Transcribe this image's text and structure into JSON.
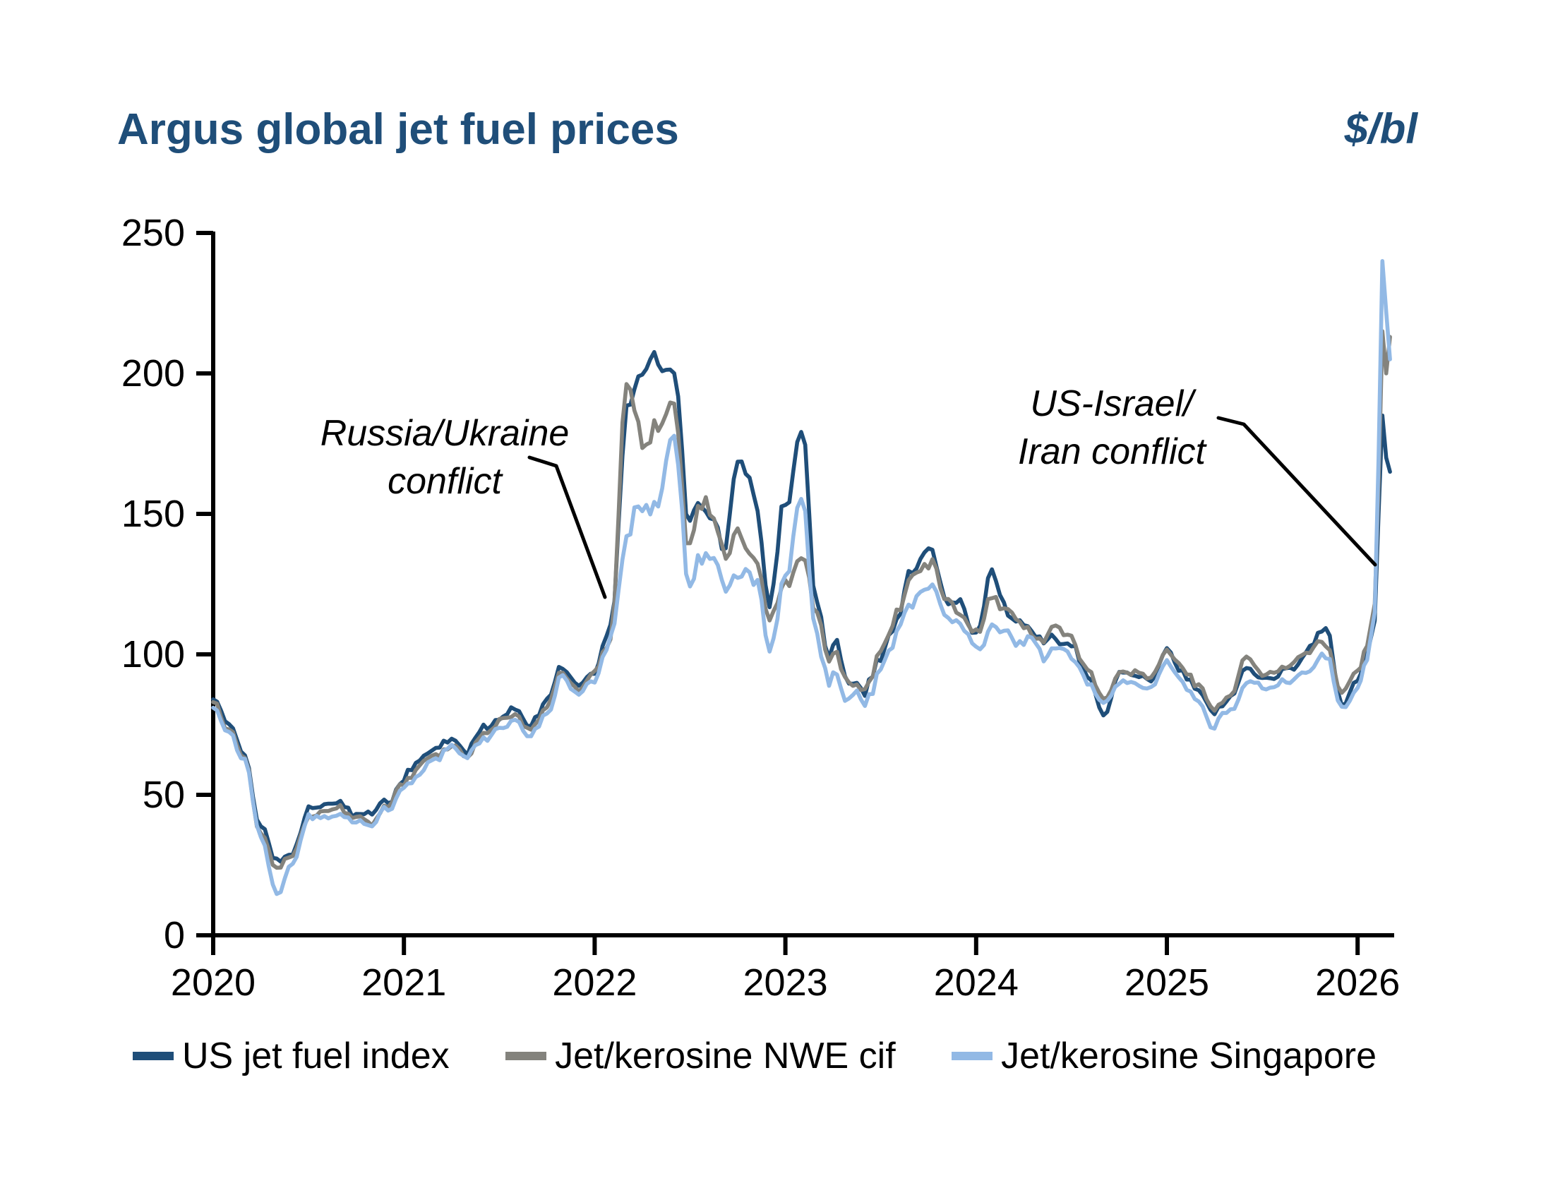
{
  "header": {
    "title": "Argus global jet fuel prices",
    "unit": "$/bl"
  },
  "annotations": {
    "russia_ukraine": {
      "lines": [
        "Russia/Ukraine",
        "conflict"
      ]
    },
    "us_israel_iran": {
      "lines": [
        "US-Israel/",
        "Iran conflict"
      ]
    }
  },
  "colors": {
    "title": "#1F4E79",
    "axis": "#000000",
    "us": "#1F4E79",
    "nwe": "#84837D",
    "singapore": "#92B9E5"
  },
  "chart_data": {
    "type": "line",
    "title": "Argus global jet fuel prices",
    "ylabel": "$/bl",
    "ylim": [
      0,
      250
    ],
    "yticks": [
      0,
      50,
      100,
      150,
      200,
      250
    ],
    "xticks": [
      2020,
      2021,
      2022,
      2023,
      2024,
      2025,
      2026
    ],
    "grid": false,
    "legend_position": "bottom",
    "x": [
      2020.0,
      2020.083,
      2020.167,
      2020.25,
      2020.333,
      2020.417,
      2020.5,
      2020.583,
      2020.667,
      2020.75,
      2020.833,
      2020.917,
      2021.0,
      2021.083,
      2021.167,
      2021.25,
      2021.333,
      2021.417,
      2021.5,
      2021.583,
      2021.667,
      2021.75,
      2021.833,
      2021.917,
      2022.0,
      2022.083,
      2022.167,
      2022.25,
      2022.333,
      2022.417,
      2022.5,
      2022.583,
      2022.667,
      2022.75,
      2022.833,
      2022.917,
      2023.0,
      2023.083,
      2023.167,
      2023.25,
      2023.333,
      2023.417,
      2023.5,
      2023.583,
      2023.667,
      2023.75,
      2023.833,
      2023.917,
      2024.0,
      2024.083,
      2024.167,
      2024.25,
      2024.333,
      2024.417,
      2024.5,
      2024.583,
      2024.667,
      2024.75,
      2024.833,
      2024.917,
      2025.0,
      2025.083,
      2025.167,
      2025.25,
      2025.333,
      2025.417,
      2025.5,
      2025.583,
      2025.667,
      2025.75,
      2025.833,
      2025.917,
      2026.0,
      2026.05,
      2026.09,
      2026.11,
      2026.13,
      2026.15,
      2026.17
    ],
    "series": [
      {
        "name": "US jet fuel index",
        "color": "#1F4E79",
        "values": [
          84,
          75,
          64,
          39,
          27,
          31,
          45,
          49,
          48,
          44,
          42,
          48,
          56,
          62,
          67,
          70,
          66,
          73,
          78,
          81,
          76,
          83,
          97,
          89,
          96,
          108,
          185,
          196,
          203,
          198,
          148,
          152,
          140,
          174,
          158,
          118,
          152,
          179,
          122,
          99,
          90,
          91,
          100,
          114,
          130,
          143,
          125,
          121,
          107,
          128,
          114,
          110,
          103,
          104,
          106,
          95,
          81,
          92,
          92,
          93,
          100,
          94,
          87,
          79,
          85,
          96,
          91,
          94,
          95,
          102,
          110,
          83,
          93,
          100,
          112,
          150,
          185,
          170,
          165
        ]
      },
      {
        "name": "Jet/kerosine NWE cif",
        "color": "#84837D",
        "values": [
          83,
          73,
          62,
          37,
          24,
          30,
          42,
          46,
          46,
          42,
          39,
          46,
          54,
          60,
          65,
          68,
          64,
          71,
          76,
          79,
          74,
          81,
          95,
          88,
          95,
          107,
          196,
          172,
          178,
          185,
          138,
          157,
          137,
          145,
          140,
          114,
          128,
          135,
          115,
          97,
          89,
          90,
          99,
          113,
          129,
          136,
          124,
          116,
          106,
          120,
          115,
          110,
          103,
          105,
          107,
          97,
          85,
          92,
          93,
          94,
          99,
          95,
          88,
          80,
          86,
          100,
          92,
          95,
          97,
          101,
          105,
          87,
          95,
          103,
          118,
          160,
          215,
          200,
          213
        ]
      },
      {
        "name": "Jet/kerosine Singapore",
        "color": "#92B9E5",
        "values": [
          81,
          72,
          61,
          35,
          16,
          28,
          42,
          45,
          44,
          41,
          38,
          45,
          53,
          59,
          64,
          67,
          64,
          70,
          74,
          76,
          72,
          79,
          93,
          86,
          93,
          105,
          140,
          148,
          155,
          177,
          122,
          135,
          125,
          132,
          128,
          106,
          130,
          152,
          108,
          92,
          84,
          86,
          95,
          108,
          120,
          125,
          115,
          110,
          101,
          110,
          107,
          103,
          98,
          100,
          101,
          92,
          84,
          88,
          89,
          90,
          96,
          91,
          84,
          75,
          81,
          90,
          87,
          89,
          90,
          94,
          101,
          81,
          90,
          98,
          115,
          170,
          240,
          222,
          205
        ]
      }
    ],
    "annotations": [
      {
        "text": "Russia/Ukraine conflict",
        "points_to": {
          "x": 2022.05,
          "y": 120
        }
      },
      {
        "text": "US-Israel/Iran conflict",
        "points_to": {
          "x": 2026.1,
          "y": 132
        }
      }
    ]
  }
}
